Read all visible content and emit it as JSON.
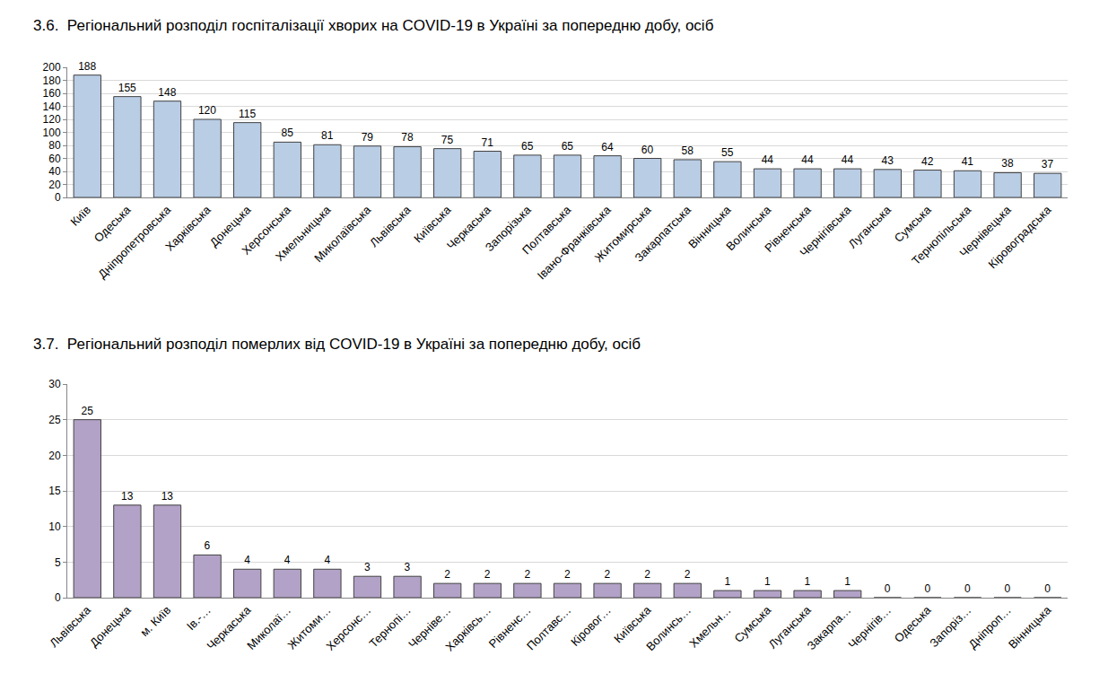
{
  "chart_data": [
    {
      "type": "bar",
      "title": "3.6.  Регіональний розподіл госпіталізації хворих на COVID-19 в Україні за попередню добу, осіб",
      "categories": [
        "Київ",
        "Одеська",
        "Дніпропетровська",
        "Харківська",
        "Донецька",
        "Херсонська",
        "Хмельницька",
        "Миколаївська",
        "Львівська",
        "Київська",
        "Черкаська",
        "Запорізька",
        "Полтавська",
        "Івано-Франківська",
        "Житомирська",
        "Закарпатська",
        "Вінницька",
        "Волинська",
        "Рівненська",
        "Чернігівська",
        "Луганська",
        "Сумська",
        "Тернопільська",
        "Чернівецька",
        "Кіровоградська"
      ],
      "values": [
        188,
        155,
        148,
        120,
        115,
        85,
        81,
        79,
        78,
        75,
        71,
        65,
        65,
        64,
        60,
        58,
        55,
        44,
        44,
        44,
        43,
        42,
        41,
        38,
        37
      ],
      "color": "#b9cde5",
      "ylim": [
        0,
        200
      ],
      "yticks": [
        0,
        20,
        40,
        60,
        80,
        100,
        120,
        140,
        160,
        180,
        200
      ],
      "grid": true,
      "data_labels": true
    },
    {
      "type": "bar",
      "title": "3.7.  Регіональний розподіл померлих від COVID-19 в Україні за попередню добу, осіб",
      "categories": [
        "Львівська",
        "Донецька",
        "м. Київ",
        "Ів.-…",
        "Черкаська",
        "Миколаї…",
        "Житоми…",
        "Херсонс…",
        "Тернопі…",
        "Черніве…",
        "Харківсь…",
        "Рівненс…",
        "Полтавс…",
        "Кіровог…",
        "Київська",
        "Волинсь…",
        "Хмельн…",
        "Сумська",
        "Луганська",
        "Закарпа…",
        "Чернігів…",
        "Одеська",
        "Запоріз…",
        "Дніпроп…",
        "Вінницька"
      ],
      "values": [
        25,
        13,
        13,
        6,
        4,
        4,
        4,
        3,
        3,
        2,
        2,
        2,
        2,
        2,
        2,
        2,
        1,
        1,
        1,
        1,
        0,
        0,
        0,
        0,
        0
      ],
      "color": "#b3a2c7",
      "ylim": [
        0,
        30
      ],
      "yticks": [
        0,
        5,
        10,
        15,
        20,
        25,
        30
      ],
      "grid": true,
      "data_labels": true
    }
  ]
}
